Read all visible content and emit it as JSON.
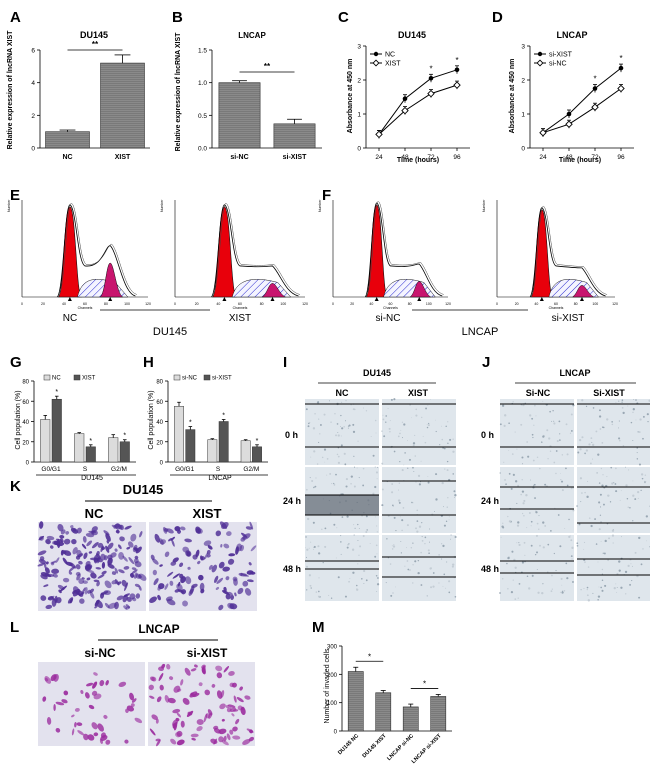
{
  "figure": {
    "panel_letters": [
      "A",
      "B",
      "C",
      "D",
      "E",
      "F",
      "G",
      "H",
      "I",
      "J",
      "K",
      "L",
      "M"
    ]
  },
  "colors": {
    "axis": "#000000",
    "bar_gray": "#8a8a8a",
    "bar_light": "#dcdcdc",
    "bar_dark": "#555555",
    "flow_red": "#e8000b",
    "flow_magenta": "#c8156e",
    "flow_hatch": "#2b2bd0",
    "wound_bg": "#dfe6ec",
    "wound_dark": "#3a4450",
    "stain_bg": "#e3e2ee",
    "stain_purple": "#4e2d95",
    "stain_magenta": "#9b2b9e"
  },
  "chart_data": [
    {
      "id": "A",
      "type": "bar",
      "title": "DU145",
      "categories": [
        "NC",
        "XIST"
      ],
      "values": [
        1.0,
        5.2
      ],
      "errors": [
        0.1,
        0.5
      ],
      "ylabel": "Relative expression of lncRNA XIST",
      "xlabel": "",
      "ylim": [
        0,
        6
      ],
      "yticks": [
        "0",
        "2",
        "4",
        "6"
      ],
      "annotation": "**"
    },
    {
      "id": "B",
      "type": "bar",
      "title": "LNCAP",
      "categories": [
        "si-NC",
        "si-XIST"
      ],
      "values": [
        1.0,
        0.37
      ],
      "errors": [
        0.03,
        0.07
      ],
      "ylabel": "Relative expression of lncRNA XIST",
      "xlabel": "",
      "ylim": [
        0,
        1.5
      ],
      "yticks": [
        "0.0",
        "0.5",
        "1.0",
        "1.5"
      ],
      "annotation": "**"
    },
    {
      "id": "C",
      "type": "line",
      "title": "DU145",
      "x": [
        24,
        48,
        72,
        96
      ],
      "series": [
        {
          "name": "NC",
          "values": [
            0.4,
            1.45,
            2.05,
            2.3
          ]
        },
        {
          "name": "XIST",
          "values": [
            0.4,
            1.1,
            1.6,
            1.85
          ]
        }
      ],
      "xlabel": "Time (hours)",
      "ylabel": "Absorbance at 450 nm",
      "ylim": [
        0,
        3
      ],
      "yticks": [
        "0",
        "1",
        "2",
        "3"
      ],
      "xticks": [
        "24",
        "48",
        "72",
        "96"
      ],
      "annotations": [
        "*",
        "*"
      ]
    },
    {
      "id": "D",
      "type": "line",
      "title": "LNCAP",
      "x": [
        24,
        48,
        72,
        96
      ],
      "series": [
        {
          "name": "si-XIST",
          "values": [
            0.45,
            1.0,
            1.75,
            2.35
          ]
        },
        {
          "name": "si-NC",
          "values": [
            0.45,
            0.7,
            1.2,
            1.75
          ]
        }
      ],
      "xlabel": "Time (hours)",
      "ylabel": "Absorbance at 450 nm",
      "ylim": [
        0,
        3
      ],
      "yticks": [
        "0",
        "1",
        "2",
        "3"
      ],
      "xticks": [
        "24",
        "48",
        "72",
        "96"
      ],
      "annotations": [
        "*",
        "*"
      ]
    },
    {
      "id": "E",
      "type": "histogram",
      "group_label": "DU145",
      "samples": [
        "NC",
        "XIST"
      ],
      "xlabel": "Channels",
      "ylabel": "Number",
      "xticks": [
        "0",
        "20",
        "40",
        "60",
        "80",
        "100",
        "120"
      ]
    },
    {
      "id": "F",
      "type": "histogram",
      "group_label": "LNCAP",
      "samples": [
        "si-NC",
        "si-XIST"
      ],
      "xlabel": "Channels",
      "ylabel": "Number",
      "xticks": [
        "0",
        "20",
        "40",
        "60",
        "80",
        "100",
        "120"
      ]
    },
    {
      "id": "G",
      "type": "bar",
      "group_label": "DU145",
      "categories": [
        "G0/G1",
        "S",
        "G2/M"
      ],
      "series": [
        {
          "name": "NC",
          "values": [
            42,
            28,
            24
          ],
          "errors": [
            4,
            1,
            3
          ]
        },
        {
          "name": "XIST",
          "values": [
            62,
            15,
            20
          ],
          "errors": [
            3,
            2,
            2
          ]
        }
      ],
      "ylabel": "Cell population (%)",
      "ylim": [
        0,
        80
      ],
      "yticks": [
        "0",
        "20",
        "40",
        "60",
        "80"
      ],
      "annotations": [
        "*",
        "*",
        "*"
      ]
    },
    {
      "id": "H",
      "type": "bar",
      "group_label": "LNCAP",
      "categories": [
        "G0/G1",
        "S",
        "G2/M"
      ],
      "series": [
        {
          "name": "si-NC",
          "values": [
            55,
            22,
            21
          ],
          "errors": [
            4,
            1,
            1
          ]
        },
        {
          "name": "si-XIST",
          "values": [
            32,
            40,
            15
          ],
          "errors": [
            3,
            2,
            2
          ]
        }
      ],
      "ylabel": "Cell population (%)",
      "ylim": [
        0,
        80
      ],
      "yticks": [
        "0",
        "20",
        "40",
        "60",
        "80"
      ],
      "annotations": [
        "*",
        "*",
        "*"
      ]
    },
    {
      "id": "I",
      "type": "image-grid",
      "group_label": "DU145",
      "columns": [
        "NC",
        "XIST"
      ],
      "rows": [
        "0 h",
        "24 h",
        "48 h"
      ]
    },
    {
      "id": "J",
      "type": "image-grid",
      "group_label": "LNCAP",
      "columns": [
        "Si-NC",
        "Si-XIST"
      ],
      "rows": [
        "0 h",
        "24 h",
        "48 h"
      ]
    },
    {
      "id": "K",
      "type": "image-grid",
      "group_label": "DU145",
      "columns": [
        "NC",
        "XIST"
      ]
    },
    {
      "id": "L",
      "type": "image-grid",
      "group_label": "LNCAP",
      "columns": [
        "si-NC",
        "si-XIST"
      ]
    },
    {
      "id": "M",
      "type": "bar",
      "categories": [
        "DU145 NC",
        "DU145 XIST",
        "LNCAP si-NC",
        "LNCAP si-XIST"
      ],
      "values": [
        210,
        135,
        85,
        122
      ],
      "errors": [
        15,
        8,
        10,
        7
      ],
      "ylabel": "Number of invaded cells",
      "ylim": [
        0,
        300
      ],
      "yticks": [
        "0",
        "100",
        "200",
        "300"
      ],
      "annotations": [
        "*",
        "*"
      ]
    }
  ]
}
